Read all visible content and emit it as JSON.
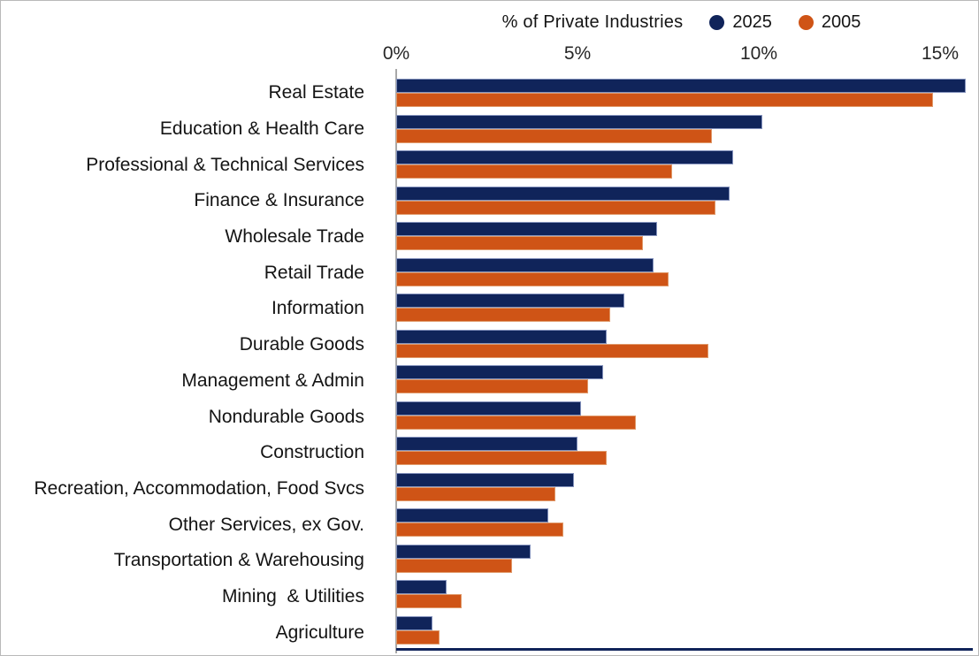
{
  "chart_data": {
    "type": "bar",
    "orientation": "horizontal",
    "legend_title": "% of Private Industries",
    "legend_position": "top",
    "grid": false,
    "xlim": [
      0,
      15.75
    ],
    "xticks": [
      {
        "label": "0%",
        "value": 0
      },
      {
        "label": "5%",
        "value": 5
      },
      {
        "label": "10%",
        "value": 10
      },
      {
        "label": "15%",
        "value": 15
      }
    ],
    "categories": [
      "Real Estate",
      "Education & Health Care",
      "Professional & Technical Services",
      "Finance & Insurance",
      "Wholesale Trade",
      "Retail Trade",
      "Information",
      "Durable Goods",
      "Management & Admin",
      "Nondurable Goods",
      "Construction",
      "Recreation, Accommodation, Food Svcs",
      "Other Services, ex Gov.",
      "Transportation & Warehousing",
      "Mining  & Utilities",
      "Agriculture"
    ],
    "series": [
      {
        "name": "2025",
        "color": "#10245a",
        "values": [
          15.7,
          10.1,
          9.3,
          9.2,
          7.2,
          7.1,
          6.3,
          5.8,
          5.7,
          5.1,
          5.0,
          4.9,
          4.2,
          3.7,
          1.4,
          1.0
        ]
      },
      {
        "name": "2005",
        "color": "#cf5416",
        "values": [
          14.8,
          8.7,
          7.6,
          8.8,
          6.8,
          7.5,
          5.9,
          8.6,
          5.3,
          6.6,
          5.8,
          4.4,
          4.6,
          3.2,
          1.8,
          1.2
        ]
      }
    ]
  }
}
